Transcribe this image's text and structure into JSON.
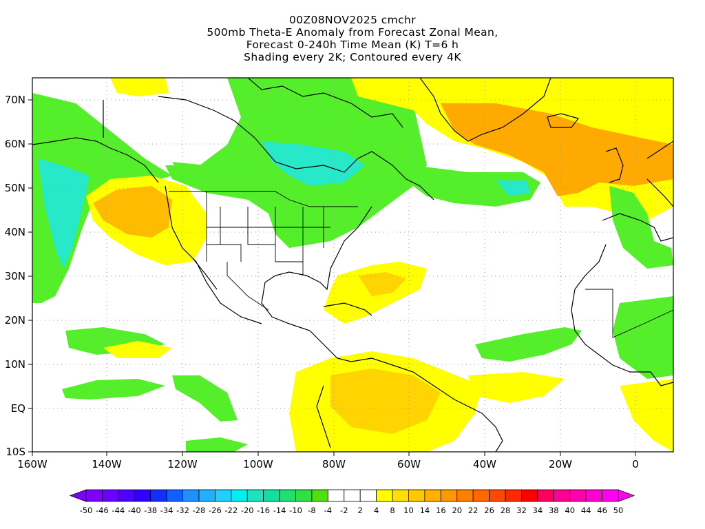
{
  "title": {
    "line1": "00Z08NOV2025 cmchr",
    "line2": "500mb Theta-E Anomaly from Forecast Zonal Mean,",
    "line3": "Forecast 0-240h Time Mean (K) T=6 h",
    "line4": "Shading every 2K; Contoured every 4K"
  },
  "map": {
    "lat_labels": [
      "70N",
      "60N",
      "50N",
      "40N",
      "30N",
      "20N",
      "10N",
      "EQ",
      "10S"
    ],
    "lon_labels": [
      "160W",
      "140W",
      "120W",
      "100W",
      "80W",
      "60W",
      "40W",
      "20W",
      "0"
    ]
  },
  "colorbar": {
    "labels": [
      "-50",
      "-46",
      "-44",
      "-40",
      "-38",
      "-34",
      "-32",
      "-28",
      "-26",
      "-22",
      "-20",
      "-16",
      "-14",
      "-10",
      "-8",
      "-4",
      "-2",
      "2",
      "4",
      "8",
      "10",
      "14",
      "16",
      "20",
      "22",
      "26",
      "28",
      "32",
      "34",
      "38",
      "40",
      "44",
      "46",
      "50"
    ],
    "colors": [
      "#8000ff",
      "#6a00ff",
      "#5000ff",
      "#3000ff",
      "#1030ff",
      "#1060ff",
      "#1e90ff",
      "#20b0ff",
      "#20d0ff",
      "#00f0f0",
      "#20e0c0",
      "#10e0a0",
      "#20e070",
      "#30e040",
      "#50e010",
      "#ffffff",
      "#ffffff",
      "#ffffff",
      "#ffff00",
      "#ffe000",
      "#ffc800",
      "#ffb000",
      "#ff9800",
      "#ff8000",
      "#ff6800",
      "#ff4800",
      "#ff2800",
      "#ff0000",
      "#ff0060",
      "#ff0090",
      "#ff00b0",
      "#ff00d0",
      "#ff00f0"
    ]
  },
  "colors": {
    "green": "#55ee2a",
    "cyan": "#27e8c8",
    "yellow": "#ffff00",
    "orange_light": "#ffd400",
    "orange": "#ffaa00"
  }
}
